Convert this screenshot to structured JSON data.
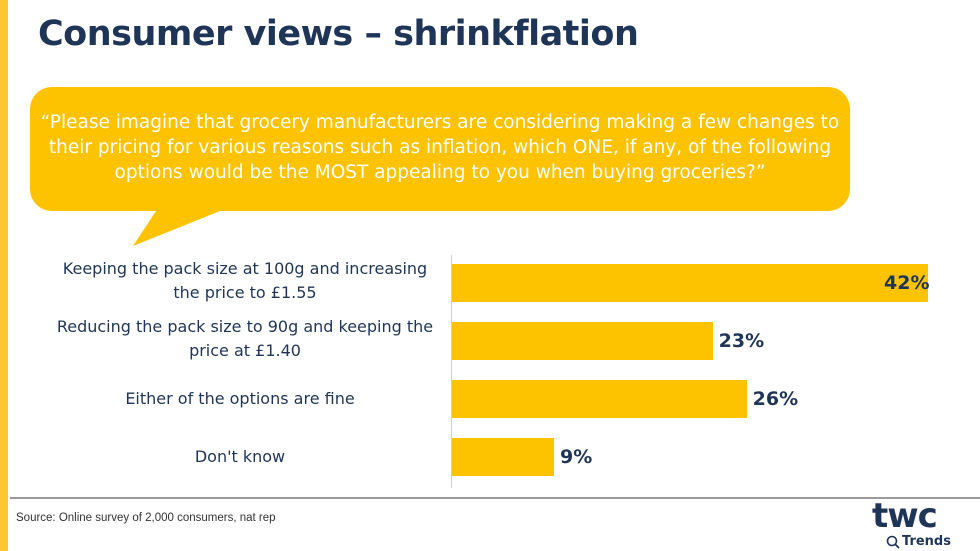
{
  "title": "Consumer views – shrinkflation",
  "question": "“Please imagine that grocery manufacturers are considering making a few changes to their pricing for various reasons such as inflation, which ONE, if any, of the following options would be the MOST appealing to you when buying groceries?”",
  "colors": {
    "bar": "#fdc300",
    "text": "#1f3557",
    "strip": "#fdc72f"
  },
  "chart_data": {
    "type": "bar",
    "orientation": "horizontal",
    "categories": [
      "Keeping the pack size at 100g and increasing the price to £1.55",
      "Reducing the pack size to 90g and keeping the price at £1.40",
      "Either of the options are fine",
      "Don't know"
    ],
    "values": [
      42,
      23,
      26,
      9
    ],
    "data_labels": [
      "42%",
      "23%",
      "26%",
      "9%"
    ],
    "unit": "%",
    "xlim": [
      0,
      42
    ],
    "grid": false
  },
  "source": "Source: Online survey of 2,000 consumers, nat rep",
  "logo": {
    "main": "twc",
    "sub": "Trends"
  }
}
